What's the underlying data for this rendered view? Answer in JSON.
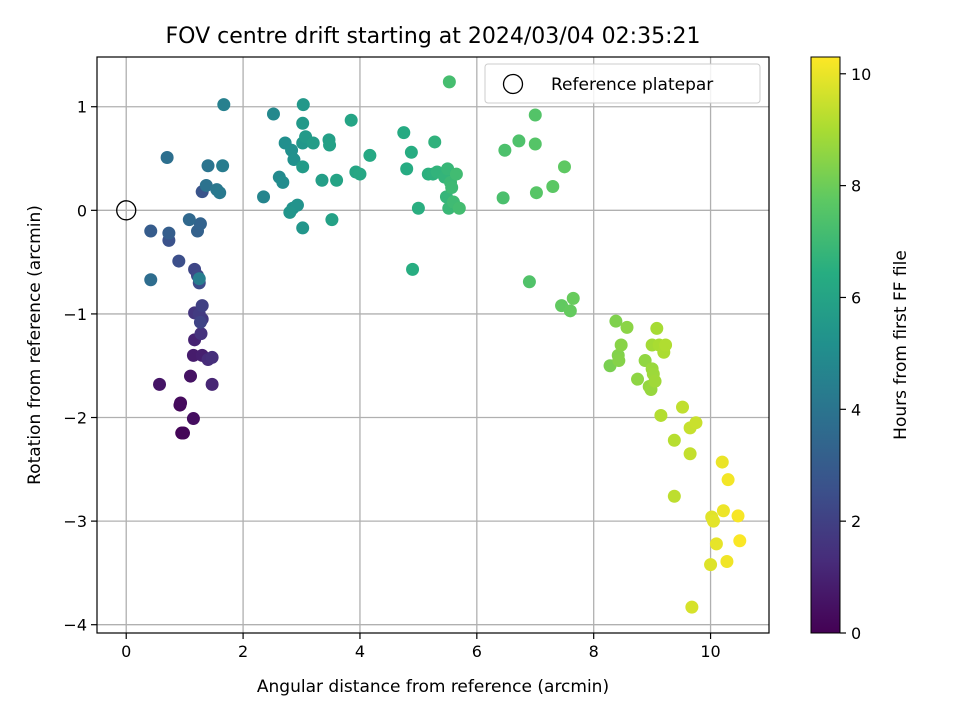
{
  "chart_data": {
    "type": "scatter",
    "title": "FOV centre drift starting at 2024/03/04 02:35:21",
    "xlabel": "Angular distance from reference (arcmin)",
    "ylabel": "Rotation from reference (arcmin)",
    "xlim": [
      -0.5,
      11
    ],
    "ylim": [
      -4.08,
      1.48
    ],
    "xticks": [
      0,
      2,
      4,
      6,
      8,
      10
    ],
    "yticks": [
      -4,
      -3,
      -2,
      -1,
      0,
      1
    ],
    "grid": true,
    "legend": {
      "placement": "top-right",
      "entries": [
        "Reference platepar"
      ]
    },
    "reference_point": {
      "x": 0,
      "y": 0,
      "label": "Reference platepar"
    },
    "colorbar": {
      "label": "Hours from first FF file",
      "colormap": "viridis",
      "range": [
        0,
        10.3
      ],
      "ticks": [
        0,
        2,
        4,
        6,
        8,
        10
      ]
    },
    "points": [
      {
        "x": 0.95,
        "y": -2.15,
        "t": 0.1
      },
      {
        "x": 0.98,
        "y": -2.15,
        "t": 0.15
      },
      {
        "x": 0.92,
        "y": -1.88,
        "t": 0.25
      },
      {
        "x": 0.93,
        "y": -1.86,
        "t": 0.3
      },
      {
        "x": 1.15,
        "y": -2.01,
        "t": 0.4
      },
      {
        "x": 1.1,
        "y": -1.6,
        "t": 0.5
      },
      {
        "x": 0.57,
        "y": -1.68,
        "t": 0.6
      },
      {
        "x": 1.15,
        "y": -1.4,
        "t": 0.8
      },
      {
        "x": 1.3,
        "y": -1.4,
        "t": 0.9
      },
      {
        "x": 1.17,
        "y": -1.25,
        "t": 1.0
      },
      {
        "x": 1.47,
        "y": -1.68,
        "t": 1.1
      },
      {
        "x": 1.4,
        "y": -1.44,
        "t": 1.3
      },
      {
        "x": 1.47,
        "y": -1.42,
        "t": 1.4
      },
      {
        "x": 1.28,
        "y": -1.19,
        "t": 1.5
      },
      {
        "x": 1.17,
        "y": -0.99,
        "t": 1.6
      },
      {
        "x": 1.3,
        "y": -1.05,
        "t": 1.7
      },
      {
        "x": 1.25,
        "y": -1.0,
        "t": 1.8
      },
      {
        "x": 1.3,
        "y": -0.92,
        "t": 2.0
      },
      {
        "x": 1.27,
        "y": -1.08,
        "t": 2.1
      },
      {
        "x": 1.17,
        "y": -0.57,
        "t": 2.2
      },
      {
        "x": 1.22,
        "y": -0.63,
        "t": 2.3
      },
      {
        "x": 1.25,
        "y": -0.7,
        "t": 2.4
      },
      {
        "x": 0.9,
        "y": -0.49,
        "t": 2.5
      },
      {
        "x": 0.73,
        "y": -0.29,
        "t": 2.6
      },
      {
        "x": 1.3,
        "y": 0.18,
        "t": 2.7
      },
      {
        "x": 0.42,
        "y": -0.2,
        "t": 3.0
      },
      {
        "x": 0.73,
        "y": -0.22,
        "t": 3.1
      },
      {
        "x": 1.22,
        "y": -0.2,
        "t": 3.2
      },
      {
        "x": 1.27,
        "y": -0.13,
        "t": 3.3
      },
      {
        "x": 1.08,
        "y": -0.09,
        "t": 3.5
      },
      {
        "x": 0.42,
        "y": -0.67,
        "t": 3.7
      },
      {
        "x": 0.7,
        "y": 0.51,
        "t": 3.8
      },
      {
        "x": 1.37,
        "y": 0.24,
        "t": 3.9
      },
      {
        "x": 1.4,
        "y": 0.43,
        "t": 4.0
      },
      {
        "x": 1.55,
        "y": 0.2,
        "t": 4.1
      },
      {
        "x": 1.6,
        "y": 0.17,
        "t": 4.2
      },
      {
        "x": 1.65,
        "y": 0.43,
        "t": 4.3
      },
      {
        "x": 1.25,
        "y": -0.66,
        "t": 4.4
      },
      {
        "x": 1.67,
        "y": 1.02,
        "t": 4.5
      },
      {
        "x": 2.35,
        "y": 0.13,
        "t": 4.7
      },
      {
        "x": 2.52,
        "y": 0.93,
        "t": 4.8
      },
      {
        "x": 2.62,
        "y": 0.32,
        "t": 4.9
      },
      {
        "x": 2.68,
        "y": 0.27,
        "t": 5.0
      },
      {
        "x": 2.72,
        "y": 0.65,
        "t": 5.1
      },
      {
        "x": 2.83,
        "y": 0.58,
        "t": 5.15
      },
      {
        "x": 2.87,
        "y": 0.49,
        "t": 5.2
      },
      {
        "x": 2.85,
        "y": 0.02,
        "t": 5.25
      },
      {
        "x": 2.93,
        "y": 0.05,
        "t": 5.3
      },
      {
        "x": 2.8,
        "y": -0.02,
        "t": 5.35
      },
      {
        "x": 3.02,
        "y": -0.17,
        "t": 5.4
      },
      {
        "x": 3.02,
        "y": 0.65,
        "t": 5.45
      },
      {
        "x": 3.03,
        "y": 1.02,
        "t": 5.5
      },
      {
        "x": 3.02,
        "y": 0.84,
        "t": 5.55
      },
      {
        "x": 3.07,
        "y": 0.71,
        "t": 5.6
      },
      {
        "x": 3.02,
        "y": 0.42,
        "t": 5.65
      },
      {
        "x": 3.2,
        "y": 0.65,
        "t": 5.7
      },
      {
        "x": 3.35,
        "y": 0.29,
        "t": 5.75
      },
      {
        "x": 3.47,
        "y": 0.68,
        "t": 5.8
      },
      {
        "x": 3.48,
        "y": 0.63,
        "t": 5.85
      },
      {
        "x": 3.52,
        "y": -0.09,
        "t": 5.9
      },
      {
        "x": 3.6,
        "y": 0.29,
        "t": 6.0
      },
      {
        "x": 3.85,
        "y": 0.87,
        "t": 6.05
      },
      {
        "x": 3.93,
        "y": 0.37,
        "t": 6.1
      },
      {
        "x": 4.0,
        "y": 0.35,
        "t": 6.15
      },
      {
        "x": 4.17,
        "y": 0.53,
        "t": 6.2
      },
      {
        "x": 4.75,
        "y": 0.75,
        "t": 6.3
      },
      {
        "x": 4.8,
        "y": 0.4,
        "t": 6.35
      },
      {
        "x": 4.88,
        "y": 0.56,
        "t": 6.4
      },
      {
        "x": 4.9,
        "y": -0.57,
        "t": 6.45
      },
      {
        "x": 5.0,
        "y": 0.02,
        "t": 6.5
      },
      {
        "x": 5.17,
        "y": 0.35,
        "t": 6.55
      },
      {
        "x": 5.25,
        "y": 0.35,
        "t": 6.6
      },
      {
        "x": 5.28,
        "y": 0.66,
        "t": 6.65
      },
      {
        "x": 5.32,
        "y": 0.37,
        "t": 6.7
      },
      {
        "x": 5.45,
        "y": 0.32,
        "t": 6.75
      },
      {
        "x": 5.48,
        "y": 0.13,
        "t": 6.8
      },
      {
        "x": 5.5,
        "y": 0.4,
        "t": 6.85
      },
      {
        "x": 5.52,
        "y": 0.02,
        "t": 6.9
      },
      {
        "x": 5.55,
        "y": 0.27,
        "t": 6.95
      },
      {
        "x": 5.57,
        "y": 0.22,
        "t": 7.0
      },
      {
        "x": 5.6,
        "y": 0.08,
        "t": 7.05
      },
      {
        "x": 5.65,
        "y": 0.35,
        "t": 7.1
      },
      {
        "x": 5.7,
        "y": 0.02,
        "t": 7.15
      },
      {
        "x": 5.53,
        "y": 1.24,
        "t": 7.2
      },
      {
        "x": 6.45,
        "y": 0.12,
        "t": 7.3
      },
      {
        "x": 6.48,
        "y": 0.58,
        "t": 7.35
      },
      {
        "x": 6.72,
        "y": 0.67,
        "t": 7.4
      },
      {
        "x": 6.9,
        "y": -0.69,
        "t": 7.45
      },
      {
        "x": 7.0,
        "y": 0.92,
        "t": 7.5
      },
      {
        "x": 7.0,
        "y": 0.64,
        "t": 7.55
      },
      {
        "x": 7.02,
        "y": 0.17,
        "t": 7.6
      },
      {
        "x": 7.3,
        "y": 0.23,
        "t": 7.7
      },
      {
        "x": 7.5,
        "y": 0.42,
        "t": 7.75
      },
      {
        "x": 7.45,
        "y": -0.92,
        "t": 7.8
      },
      {
        "x": 7.6,
        "y": -0.97,
        "t": 7.85
      },
      {
        "x": 7.65,
        "y": -0.85,
        "t": 7.9
      },
      {
        "x": 8.28,
        "y": -1.5,
        "t": 8.2
      },
      {
        "x": 8.38,
        "y": -1.07,
        "t": 8.3
      },
      {
        "x": 8.42,
        "y": -1.4,
        "t": 8.35
      },
      {
        "x": 8.43,
        "y": -1.45,
        "t": 8.4
      },
      {
        "x": 8.47,
        "y": -1.3,
        "t": 8.45
      },
      {
        "x": 8.57,
        "y": -1.13,
        "t": 8.5
      },
      {
        "x": 8.75,
        "y": -1.63,
        "t": 8.55
      },
      {
        "x": 8.88,
        "y": -1.45,
        "t": 8.6
      },
      {
        "x": 8.95,
        "y": -1.7,
        "t": 8.65
      },
      {
        "x": 8.98,
        "y": -1.73,
        "t": 8.7
      },
      {
        "x": 9.0,
        "y": -1.53,
        "t": 8.75
      },
      {
        "x": 9.02,
        "y": -1.58,
        "t": 8.8
      },
      {
        "x": 9.05,
        "y": -1.65,
        "t": 8.85
      },
      {
        "x": 9.0,
        "y": -1.3,
        "t": 8.9
      },
      {
        "x": 9.08,
        "y": -1.14,
        "t": 8.95
      },
      {
        "x": 9.12,
        "y": -1.3,
        "t": 9.0
      },
      {
        "x": 9.2,
        "y": -1.37,
        "t": 9.05
      },
      {
        "x": 9.23,
        "y": -1.3,
        "t": 9.1
      },
      {
        "x": 9.15,
        "y": -1.98,
        "t": 9.15
      },
      {
        "x": 9.38,
        "y": -2.22,
        "t": 9.2
      },
      {
        "x": 9.38,
        "y": -2.76,
        "t": 9.3
      },
      {
        "x": 9.52,
        "y": -1.9,
        "t": 9.35
      },
      {
        "x": 9.65,
        "y": -2.35,
        "t": 9.4
      },
      {
        "x": 9.65,
        "y": -2.1,
        "t": 9.45
      },
      {
        "x": 9.75,
        "y": -2.05,
        "t": 9.5
      },
      {
        "x": 9.68,
        "y": -3.83,
        "t": 9.7
      },
      {
        "x": 10.0,
        "y": -3.42,
        "t": 9.8
      },
      {
        "x": 10.02,
        "y": -2.96,
        "t": 9.85
      },
      {
        "x": 10.05,
        "y": -3.0,
        "t": 9.9
      },
      {
        "x": 10.1,
        "y": -3.22,
        "t": 9.95
      },
      {
        "x": 10.2,
        "y": -2.43,
        "t": 10.0
      },
      {
        "x": 10.22,
        "y": -2.9,
        "t": 10.05
      },
      {
        "x": 10.28,
        "y": -3.39,
        "t": 10.1
      },
      {
        "x": 10.3,
        "y": -2.6,
        "t": 10.15
      },
      {
        "x": 10.47,
        "y": -2.95,
        "t": 10.2
      },
      {
        "x": 10.5,
        "y": -3.19,
        "t": 10.25
      }
    ]
  }
}
